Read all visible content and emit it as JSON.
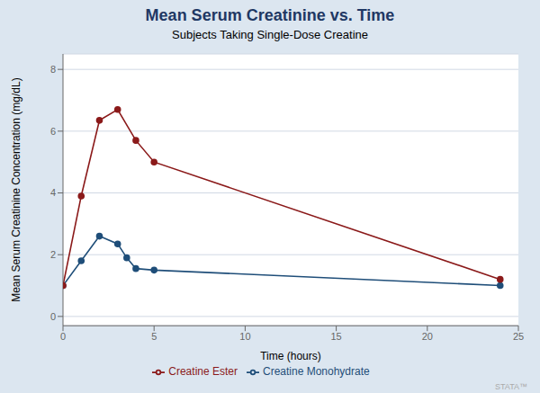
{
  "chart_data": {
    "type": "line",
    "title": "Mean Serum Creatinine vs. Time",
    "subtitle": "Subjects Taking Single-Dose Creatine",
    "x_label": "Time (hours)",
    "y_label": "Mean Serum Creatinine Concentration (mg/dL)",
    "xlim": [
      0,
      25
    ],
    "ylim": [
      -0.3,
      8.5
    ],
    "xticks": [
      0,
      5,
      10,
      15,
      20,
      25
    ],
    "yticks": [
      0,
      2,
      4,
      6,
      8
    ],
    "grid": true,
    "legend": "bottom",
    "annotations": [
      "STATA™"
    ],
    "series": [
      {
        "name": "Creatine Monohydrate",
        "color": "#1f4e79",
        "marker": "circle",
        "line_style": "solid",
        "x": [
          0,
          1,
          2,
          3,
          3.5,
          4,
          5,
          24
        ],
        "values": [
          1.0,
          1.8,
          2.6,
          2.35,
          1.9,
          1.55,
          1.5,
          1.0
        ]
      },
      {
        "name": "Creatine Ester",
        "color": "#8b1a1a",
        "marker": "circle",
        "line_style": "solid",
        "x": [
          0,
          1,
          2,
          3,
          4,
          5,
          24
        ],
        "values": [
          1.0,
          3.9,
          6.35,
          6.7,
          5.7,
          5.0,
          1.2
        ]
      }
    ]
  }
}
